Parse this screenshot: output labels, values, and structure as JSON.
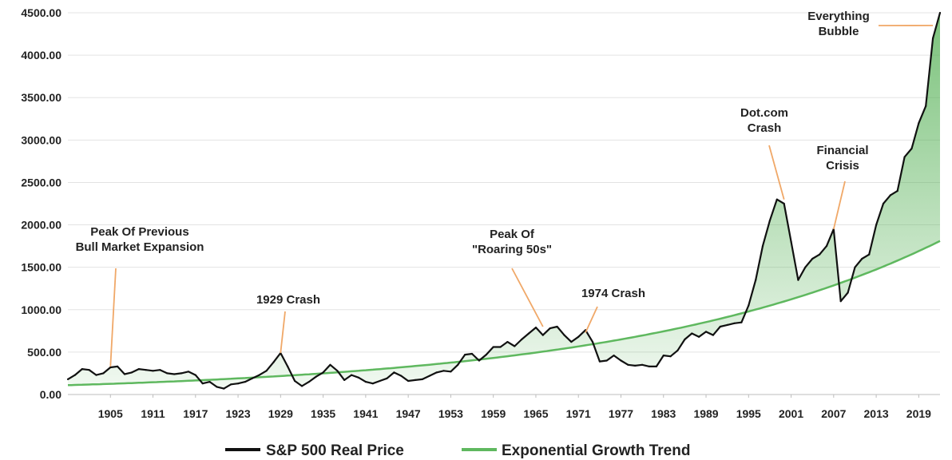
{
  "chart_data": {
    "type": "area",
    "title": "",
    "xlabel": "",
    "ylabel": "",
    "xlim": [
      1899,
      2022
    ],
    "ylim": [
      0,
      4500
    ],
    "grid": "horizontal",
    "legend_position": "bottom",
    "y_ticks": [
      0,
      500,
      1000,
      1500,
      2000,
      2500,
      3000,
      3500,
      4000,
      4500
    ],
    "y_tick_labels": [
      "0.00",
      "500.00",
      "1000.00",
      "1500.00",
      "2000.00",
      "2500.00",
      "3000.00",
      "3500.00",
      "4000.00",
      "4500.00"
    ],
    "x_ticks": [
      1905,
      1911,
      1917,
      1923,
      1929,
      1935,
      1941,
      1947,
      1953,
      1959,
      1965,
      1971,
      1977,
      1983,
      1989,
      1995,
      2001,
      2007,
      2013,
      2019
    ],
    "x_tick_labels": [
      "1905",
      "1911",
      "1917",
      "1923",
      "1929",
      "1935",
      "1941",
      "1947",
      "1953",
      "1959",
      "1965",
      "1971",
      "1977",
      "1983",
      "1989",
      "1995",
      "2001",
      "2007",
      "2013",
      "2019"
    ],
    "series": [
      {
        "name": "S&P 500 Real Price",
        "color": "#111111",
        "x": [
          1899,
          1900,
          1901,
          1902,
          1903,
          1904,
          1905,
          1906,
          1907,
          1908,
          1909,
          1910,
          1911,
          1912,
          1913,
          1914,
          1915,
          1916,
          1917,
          1918,
          1919,
          1920,
          1921,
          1922,
          1923,
          1924,
          1925,
          1926,
          1927,
          1928,
          1929,
          1930,
          1931,
          1932,
          1933,
          1934,
          1935,
          1936,
          1937,
          1938,
          1939,
          1940,
          1941,
          1942,
          1943,
          1944,
          1945,
          1946,
          1947,
          1948,
          1949,
          1950,
          1951,
          1952,
          1953,
          1954,
          1955,
          1956,
          1957,
          1958,
          1959,
          1960,
          1961,
          1962,
          1963,
          1964,
          1965,
          1966,
          1967,
          1968,
          1969,
          1970,
          1971,
          1972,
          1973,
          1974,
          1975,
          1976,
          1977,
          1978,
          1979,
          1980,
          1981,
          1982,
          1983,
          1984,
          1985,
          1986,
          1987,
          1988,
          1989,
          1990,
          1991,
          1992,
          1993,
          1994,
          1995,
          1996,
          1997,
          1998,
          1999,
          2000,
          2001,
          2002,
          2003,
          2004,
          2005,
          2006,
          2007,
          2008,
          2009,
          2010,
          2011,
          2012,
          2013,
          2014,
          2015,
          2016,
          2017,
          2018,
          2019,
          2020,
          2021,
          2022
        ],
        "values": [
          180,
          230,
          300,
          290,
          230,
          250,
          320,
          330,
          240,
          260,
          300,
          290,
          280,
          290,
          250,
          240,
          250,
          270,
          230,
          130,
          150,
          90,
          70,
          120,
          130,
          150,
          190,
          230,
          280,
          380,
          490,
          330,
          160,
          100,
          150,
          210,
          260,
          350,
          280,
          170,
          230,
          200,
          150,
          130,
          160,
          190,
          260,
          220,
          160,
          170,
          180,
          220,
          260,
          280,
          270,
          350,
          470,
          480,
          400,
          470,
          560,
          560,
          620,
          570,
          650,
          720,
          790,
          700,
          780,
          800,
          700,
          620,
          680,
          760,
          620,
          390,
          400,
          460,
          400,
          350,
          340,
          350,
          330,
          330,
          460,
          450,
          520,
          650,
          720,
          680,
          740,
          700,
          800,
          820,
          840,
          850,
          1050,
          1350,
          1750,
          2050,
          2300,
          2250,
          1800,
          1350,
          1500,
          1600,
          1650,
          1750,
          1950,
          1100,
          1200,
          1500,
          1600,
          1650,
          2000,
          2250,
          2350,
          2400,
          2800,
          2900,
          3200,
          3400,
          4200,
          4500
        ]
      },
      {
        "name": "Exponential Growth Trend",
        "color": "#5fb85f",
        "model": "exponential",
        "start": [
          1899,
          110
        ],
        "end": [
          2022,
          1810
        ]
      }
    ],
    "annotations": [
      {
        "lines": [
          "Peak Of Previous",
          "Bull Market Expansion"
        ],
        "point": [
          1905,
          330
        ]
      },
      {
        "lines": [
          "1929 Crash"
        ],
        "point": [
          1929,
          490
        ]
      },
      {
        "lines": [
          "Peak Of",
          "\"Roaring 50s\""
        ],
        "point": [
          1966,
          800
        ]
      },
      {
        "lines": [
          "1974 Crash"
        ],
        "point": [
          1972,
          730
        ]
      },
      {
        "lines": [
          "Dot.com",
          "Crash"
        ],
        "point": [
          2000,
          2300
        ]
      },
      {
        "lines": [
          "Financial",
          "Crisis"
        ],
        "point": [
          2007,
          1950
        ]
      },
      {
        "lines": [
          "Everything",
          "Bubble"
        ],
        "point": [
          2021,
          4350
        ]
      }
    ],
    "colors": {
      "price_line": "#111111",
      "trend_line": "#5fb85f",
      "area_fill": "#5fb85f",
      "annotation_leader": "#f0a868",
      "axis_text": "#222222"
    }
  }
}
